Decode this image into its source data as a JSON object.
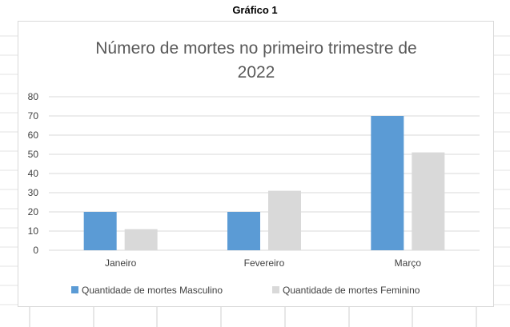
{
  "heading": "Gráfico 1",
  "chart_data": {
    "type": "bar",
    "title": "Número de mortes no primeiro trimestre de 2022",
    "title_lines": [
      "Número de mortes no primeiro trimestre de",
      "2022"
    ],
    "categories": [
      "Janeiro",
      "Fevereiro",
      "Março"
    ],
    "series": [
      {
        "name": "Quantidade de mortes Masculino",
        "values": [
          20,
          20,
          70
        ],
        "color": "#5b9bd5"
      },
      {
        "name": "Quantidade de mortes Feminino",
        "values": [
          11,
          31,
          51
        ],
        "color": "#d9d9d9"
      }
    ],
    "ylim": [
      0,
      80
    ],
    "yticks": [
      0,
      10,
      20,
      30,
      40,
      50,
      60,
      70,
      80
    ],
    "xlabel": "",
    "ylabel": "",
    "grid": true,
    "legend": "bottom"
  },
  "colors": {
    "gridline": "#d9d9d9",
    "title": "#595959",
    "axis_text": "#404040"
  }
}
